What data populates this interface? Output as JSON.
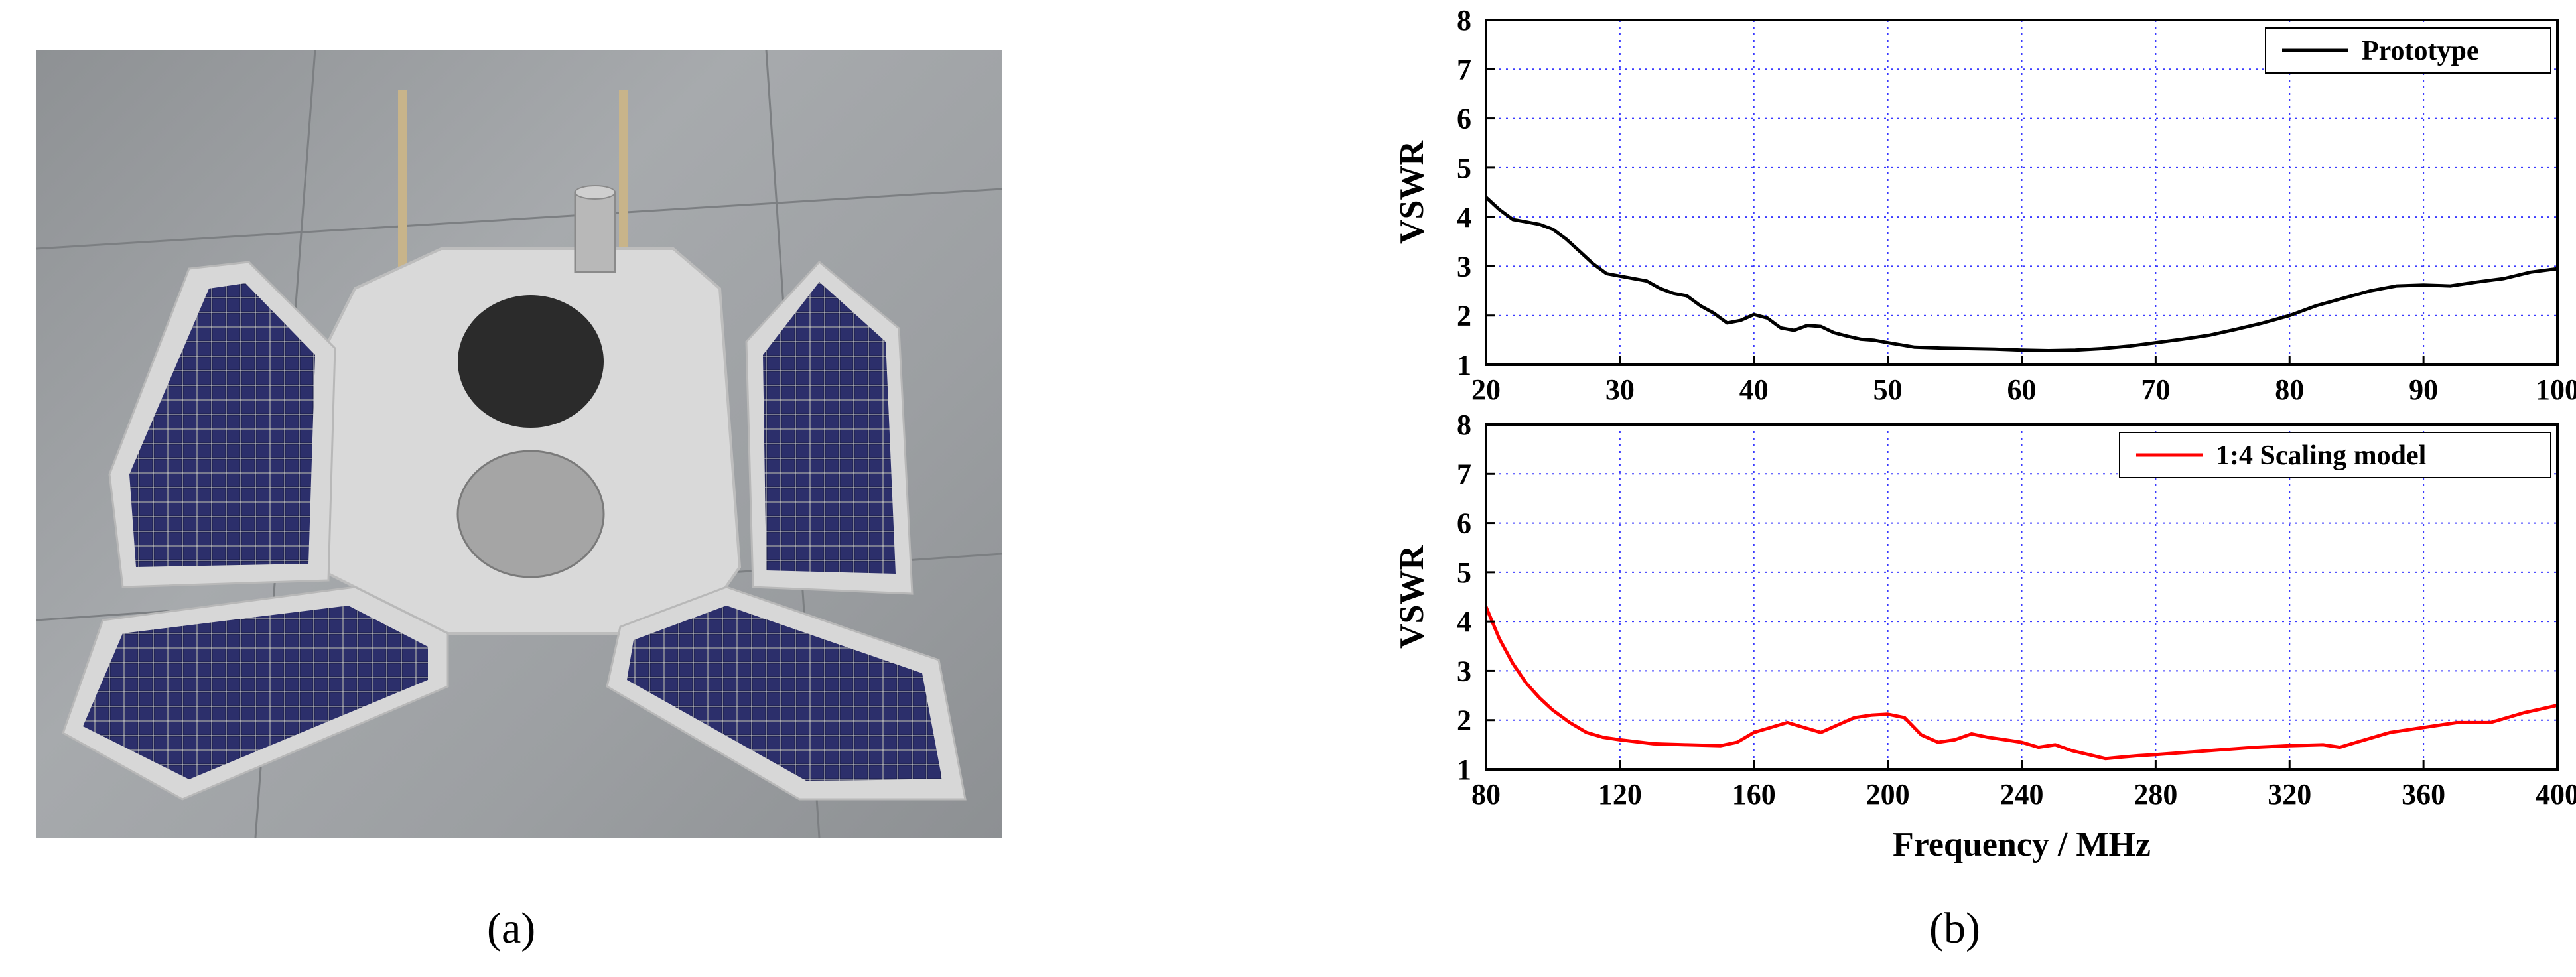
{
  "panels": {
    "a_label": "(a)",
    "b_label": "(b)"
  },
  "photo": {
    "description_icon": "satellite-solar-panel-antenna-icon"
  },
  "colors": {
    "prototype": "#000000",
    "scaling": "#ff0000",
    "grid": "#3a3aff"
  },
  "chart_data": [
    {
      "type": "line",
      "title": "",
      "xlabel": "",
      "ylabel": "VSWR",
      "xlim": [
        20,
        100
      ],
      "ylim": [
        1,
        8
      ],
      "xticks": [
        20,
        30,
        40,
        50,
        60,
        70,
        80,
        90,
        100
      ],
      "yticks": [
        1,
        2,
        3,
        4,
        5,
        6,
        7,
        8
      ],
      "grid": true,
      "legend_position": "top-right",
      "series": [
        {
          "name": "Prototype",
          "color": "#000000",
          "x": [
            20,
            21,
            22,
            23,
            24,
            25,
            26,
            27,
            28,
            29,
            30,
            31,
            32,
            33,
            34,
            35,
            36,
            37,
            38,
            39,
            40,
            41,
            42,
            43,
            44,
            45,
            46,
            47,
            48,
            49,
            50,
            52,
            54,
            56,
            58,
            60,
            62,
            64,
            66,
            68,
            70,
            72,
            74,
            76,
            78,
            80,
            82,
            84,
            86,
            88,
            90,
            92,
            94,
            96,
            98,
            100
          ],
          "y": [
            4.4,
            4.15,
            3.95,
            3.9,
            3.85,
            3.75,
            3.55,
            3.3,
            3.05,
            2.85,
            2.8,
            2.75,
            2.7,
            2.55,
            2.45,
            2.4,
            2.2,
            2.05,
            1.85,
            1.9,
            2.02,
            1.95,
            1.75,
            1.7,
            1.8,
            1.78,
            1.65,
            1.58,
            1.52,
            1.5,
            1.45,
            1.36,
            1.34,
            1.33,
            1.32,
            1.3,
            1.29,
            1.3,
            1.33,
            1.38,
            1.45,
            1.52,
            1.6,
            1.72,
            1.85,
            2.0,
            2.2,
            2.35,
            2.5,
            2.6,
            2.62,
            2.6,
            2.68,
            2.75,
            2.88,
            2.95
          ]
        }
      ]
    },
    {
      "type": "line",
      "title": "",
      "xlabel": "Frequency / MHz",
      "ylabel": "VSWR",
      "xlim": [
        80,
        400
      ],
      "ylim": [
        1,
        8
      ],
      "xticks": [
        80,
        120,
        160,
        200,
        240,
        280,
        320,
        360,
        400
      ],
      "yticks": [
        1,
        2,
        3,
        4,
        5,
        6,
        7,
        8
      ],
      "grid": true,
      "legend_position": "top-right",
      "series": [
        {
          "name": "1:4 Scaling model",
          "color": "#ff0000",
          "x": [
            80,
            84,
            88,
            92,
            96,
            100,
            105,
            110,
            115,
            120,
            130,
            140,
            150,
            155,
            160,
            165,
            170,
            175,
            180,
            185,
            190,
            195,
            200,
            205,
            210,
            215,
            220,
            225,
            230,
            235,
            240,
            245,
            250,
            255,
            260,
            265,
            270,
            275,
            280,
            290,
            300,
            310,
            320,
            330,
            335,
            340,
            350,
            360,
            370,
            380,
            390,
            400
          ],
          "y": [
            4.3,
            3.65,
            3.15,
            2.75,
            2.45,
            2.2,
            1.95,
            1.75,
            1.65,
            1.6,
            1.52,
            1.5,
            1.48,
            1.55,
            1.75,
            1.85,
            1.95,
            1.85,
            1.75,
            1.9,
            2.05,
            2.1,
            2.12,
            2.05,
            1.7,
            1.55,
            1.6,
            1.72,
            1.65,
            1.6,
            1.55,
            1.45,
            1.5,
            1.38,
            1.3,
            1.22,
            1.25,
            1.28,
            1.3,
            1.35,
            1.4,
            1.45,
            1.48,
            1.5,
            1.45,
            1.55,
            1.75,
            1.85,
            1.95,
            1.95,
            2.15,
            2.3
          ]
        }
      ]
    }
  ]
}
